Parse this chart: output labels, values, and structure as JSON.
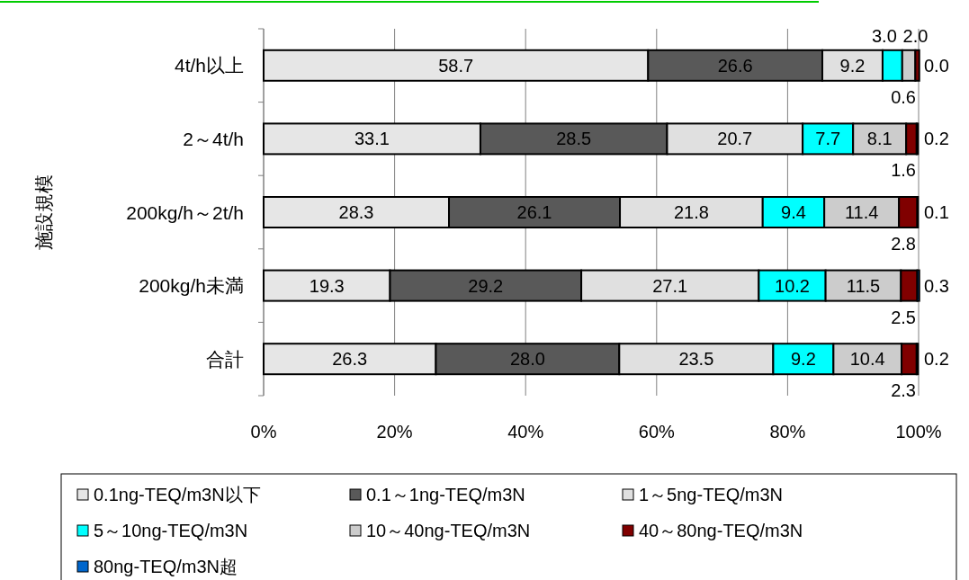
{
  "chart_data": {
    "type": "bar",
    "orientation": "horizontal",
    "stacked": true,
    "ylabel": "施設規模",
    "categories": [
      "4t/h以上",
      "2～4t/h",
      "200kg/h～2t/h",
      "200kg/h未満",
      "合計"
    ],
    "series": [
      {
        "name": "0.1ng-TEQ/m3N以下",
        "color": "#e6e6e6",
        "values": [
          58.7,
          33.1,
          28.3,
          19.3,
          26.3
        ],
        "value_labels": [
          "58.7",
          "33.1",
          "28.3",
          "19.3",
          "26.3"
        ]
      },
      {
        "name": "0.1～1ng-TEQ/m3N",
        "color": "#595959",
        "values": [
          26.6,
          28.5,
          26.1,
          29.2,
          28.0
        ],
        "value_labels": [
          "26.6",
          "28.5",
          "26.1",
          "29.2",
          "28.0"
        ]
      },
      {
        "name": "1～5ng-TEQ/m3N",
        "color": "#e0e0e0",
        "values": [
          9.2,
          20.7,
          21.8,
          27.1,
          23.5
        ],
        "value_labels": [
          "9.2",
          "20.7",
          "21.8",
          "27.1",
          "23.5"
        ]
      },
      {
        "name": "5～10ng-TEQ/m3N",
        "color": "#00ffff",
        "values": [
          3.0,
          7.7,
          9.4,
          10.2,
          9.2
        ],
        "value_labels": [
          "3.0",
          "7.7",
          "9.4",
          "10.2",
          "9.2"
        ]
      },
      {
        "name": "10～40ng-TEQ/m3N",
        "color": "#cccccc",
        "values": [
          2.0,
          8.1,
          11.4,
          11.5,
          10.4
        ],
        "value_labels": [
          "2.0",
          "8.1",
          "11.4",
          "11.5",
          "10.4"
        ]
      },
      {
        "name": "40～80ng-TEQ/m3N",
        "color": "#800000",
        "values": [
          0.6,
          1.6,
          2.8,
          2.5,
          2.3
        ],
        "value_labels": [
          "0.6",
          "1.6",
          "2.8",
          "2.5",
          "2.3"
        ]
      },
      {
        "name": "80ng-TEQ/m3N超",
        "color": "#0066cc",
        "values": [
          0.0,
          0.2,
          0.1,
          0.3,
          0.2
        ],
        "value_labels": [
          "0.0",
          "0.2",
          "0.1",
          "0.3",
          "0.2"
        ]
      }
    ],
    "xlim": [
      0,
      100
    ],
    "xticks": [
      {
        "value": 0,
        "label": "0%"
      },
      {
        "value": 20,
        "label": "20%"
      },
      {
        "value": 40,
        "label": "40%"
      },
      {
        "value": 60,
        "label": "60%"
      },
      {
        "value": 80,
        "label": "80%"
      },
      {
        "value": 100,
        "label": "100%"
      }
    ],
    "grid": "x",
    "legend": "bottom"
  }
}
